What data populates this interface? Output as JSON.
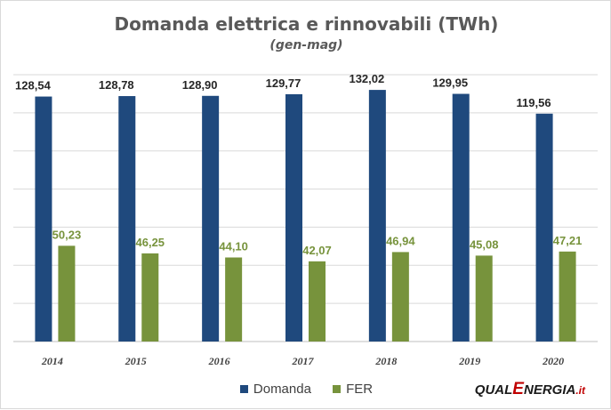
{
  "chart_data": {
    "type": "bar",
    "title": "Domanda elettrica e rinnovabili (TWh)",
    "subtitle": "(gen-mag)",
    "categories": [
      "2014",
      "2015",
      "2016",
      "2017",
      "2018",
      "2019",
      "2020"
    ],
    "series": [
      {
        "name": "Domanda",
        "color": "#1f497d",
        "values": [
          128.54,
          128.78,
          128.9,
          129.77,
          132.02,
          129.95,
          119.56
        ],
        "labels": [
          "128,54",
          "128,78",
          "128,90",
          "129,77",
          "132,02",
          "129,95",
          "119,56"
        ],
        "label_color": "#262626"
      },
      {
        "name": "FER",
        "color": "#77933c",
        "values": [
          50.23,
          46.25,
          44.1,
          42.07,
          46.94,
          45.08,
          47.21
        ],
        "labels": [
          "50,23",
          "46,25",
          "44,10",
          "42,07",
          "46,94",
          "45,08",
          "47,21"
        ],
        "label_color": "#77933c"
      }
    ],
    "ylim": [
      0,
      140
    ],
    "grid": true,
    "legend_position": "bottom"
  },
  "logo": {
    "part1": "QUAL",
    "part2": "E",
    "part3": "NERGIA",
    "part4": ".it"
  }
}
